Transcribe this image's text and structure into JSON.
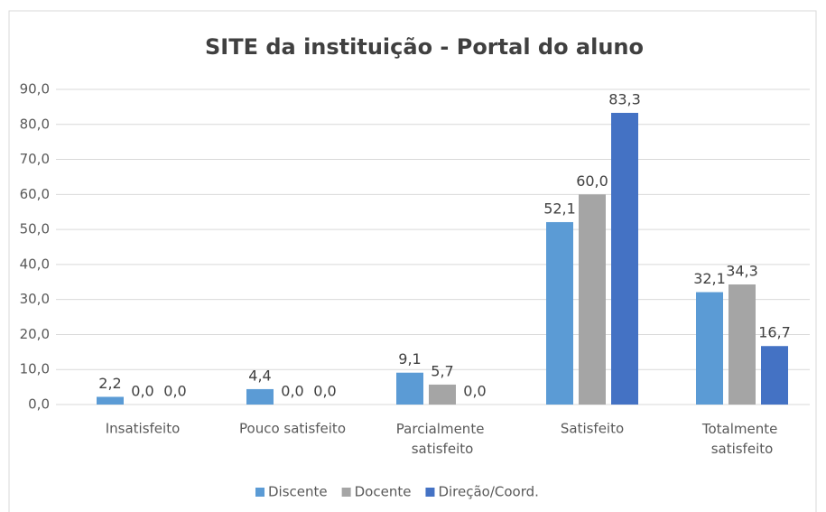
{
  "chart_data": {
    "type": "bar",
    "title": "SITE  da instituição - Portal do aluno",
    "categories": [
      "Insatisfeito",
      "Pouco satisfeito",
      "Parcialmente satisfeito",
      "Satisfeito",
      "Totalmente satisfeito"
    ],
    "series": [
      {
        "name": "Discente",
        "color": "#5b9bd5",
        "values": [
          2.2,
          4.4,
          9.1,
          52.1,
          32.1
        ],
        "value_labels": [
          "2,2",
          "4,4",
          "9,1",
          "52,1",
          "32,1"
        ]
      },
      {
        "name": "Docente",
        "color": "#a5a5a5",
        "values": [
          0,
          0,
          5.7,
          60,
          34.3
        ],
        "value_labels": [
          "0,0",
          "0,0",
          "5,7",
          "60,0",
          "34,3"
        ]
      },
      {
        "name": "Direção/Coord.",
        "color": "#4472c4",
        "values": [
          0,
          0,
          0,
          83.3,
          16.7
        ],
        "value_labels": [
          "0,0",
          "0,0",
          "0,0",
          "83,3",
          "16,7"
        ]
      }
    ],
    "ylim": [
      0,
      90
    ],
    "yticks": [
      {
        "value": 0,
        "label": "0,0"
      },
      {
        "value": 10,
        "label": "10,0"
      },
      {
        "value": 20,
        "label": "20,0"
      },
      {
        "value": 30,
        "label": "30,0"
      },
      {
        "value": 40,
        "label": "40,0"
      },
      {
        "value": 50,
        "label": "50,0"
      },
      {
        "value": 60,
        "label": "60,0"
      },
      {
        "value": 70,
        "label": "70,0"
      },
      {
        "value": 80,
        "label": "80,0"
      },
      {
        "value": 90,
        "label": "90,0"
      }
    ],
    "grid": true,
    "legend": "bottom"
  }
}
